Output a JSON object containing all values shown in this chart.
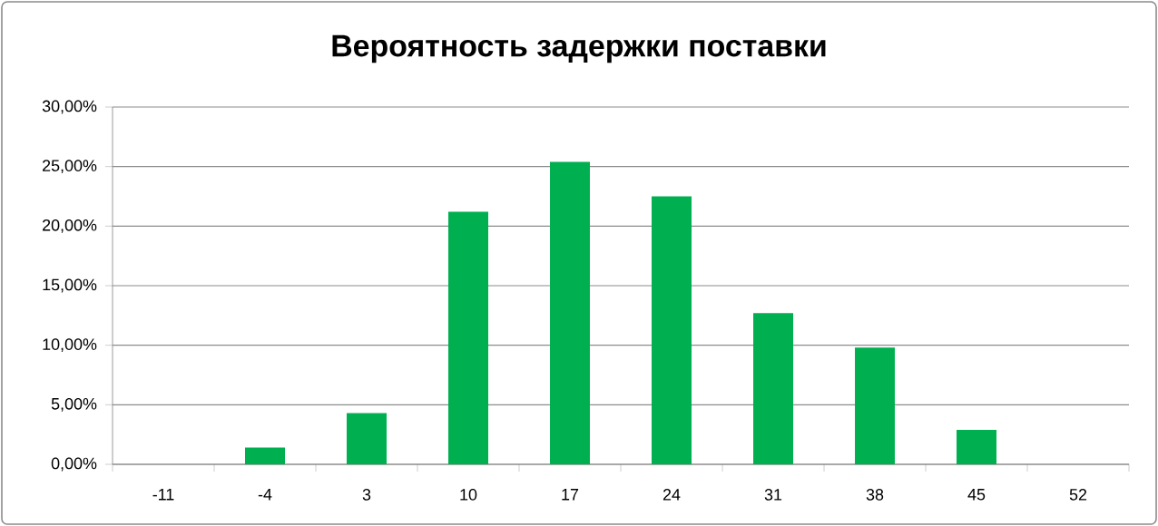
{
  "chart_data": {
    "type": "bar",
    "title": "Вероятность задержки поставки",
    "categories": [
      "-11",
      "-4",
      "3",
      "10",
      "17",
      "24",
      "31",
      "38",
      "45",
      "52"
    ],
    "values": [
      0,
      1.4,
      4.3,
      21.2,
      25.4,
      22.5,
      12.7,
      9.8,
      2.9,
      0
    ],
    "color": "#00b050",
    "ylim": [
      0,
      30
    ],
    "yticks": [
      {
        "value": 0,
        "label": "0,00%"
      },
      {
        "value": 5,
        "label": "5,00%"
      },
      {
        "value": 10,
        "label": "10,00%"
      },
      {
        "value": 15,
        "label": "15,00%"
      },
      {
        "value": 20,
        "label": "20,00%"
      },
      {
        "value": 25,
        "label": "25,00%"
      },
      {
        "value": 30,
        "label": "30,00%"
      }
    ],
    "grid": "y"
  }
}
